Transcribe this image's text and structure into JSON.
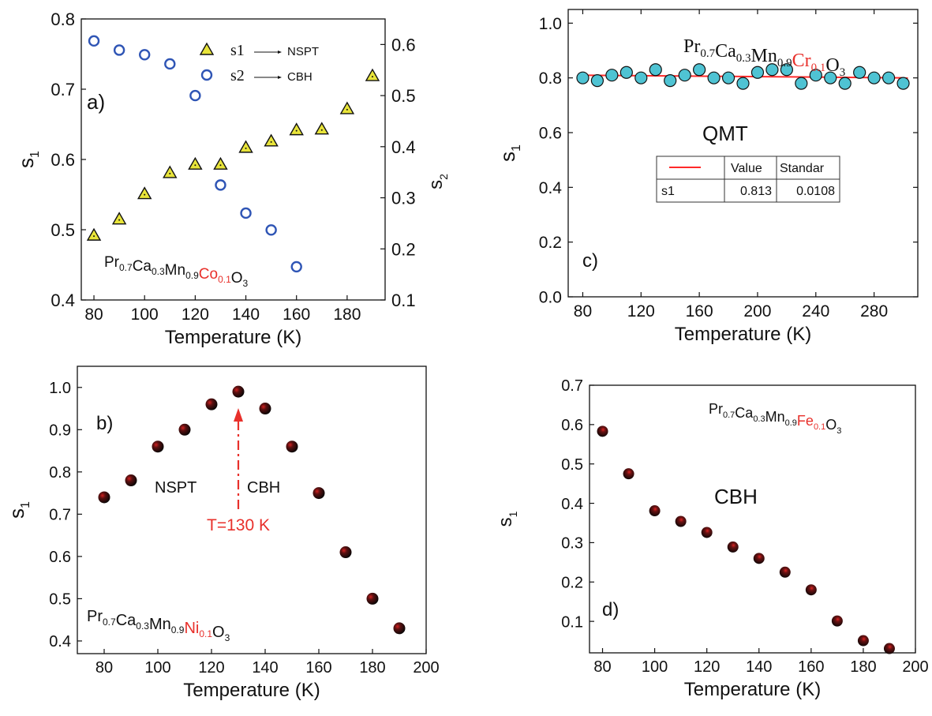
{
  "colors": {
    "axis": "#111111",
    "red": "#e8302b",
    "triangle": "#e8e43a",
    "circle_open": "#2f55b5",
    "circle_teal": "#4fc3d3",
    "sphere_highlight": "#cc2020",
    "fit_line": "#ff2a2a"
  },
  "chart_data": [
    {
      "id": "a",
      "type": "scatter",
      "panel_label": "a)",
      "xlabel": "Temperature (K)",
      "ylabel": "s1",
      "y2label": "s2",
      "xlim": [
        75,
        195
      ],
      "xticks": [
        "80",
        "100",
        "120",
        "140",
        "160",
        "180"
      ],
      "ylim": [
        0.4,
        0.8
      ],
      "yticks": [
        "0.4",
        "0.5",
        "0.6",
        "0.7",
        "0.8"
      ],
      "y2lim": [
        0.1,
        0.65
      ],
      "y2ticks": [
        "0.1",
        "0.2",
        "0.3",
        "0.4",
        "0.5",
        "0.6"
      ],
      "compound": {
        "base": "Pr0.7Ca0.3Mn0.9",
        "dopant": "Co0.1",
        "tail": "O3"
      },
      "legend": [
        {
          "symbol": "triangle",
          "label": "s1",
          "model": "NSPT"
        },
        {
          "symbol": "circle-open",
          "label": "s2",
          "model": "CBH"
        }
      ],
      "series": [
        {
          "name": "s1",
          "axis": "left",
          "marker": "triangle",
          "x": [
            80,
            90,
            100,
            110,
            120,
            130,
            140,
            150,
            160,
            170,
            180,
            190
          ],
          "y": [
            0.492,
            0.515,
            0.551,
            0.581,
            0.593,
            0.593,
            0.617,
            0.626,
            0.642,
            0.643,
            0.672,
            0.719
          ]
        },
        {
          "name": "s2",
          "axis": "right",
          "marker": "circle-open",
          "x": [
            80,
            90,
            100,
            110,
            120,
            130,
            140,
            150,
            160
          ],
          "y": [
            0.607,
            0.589,
            0.58,
            0.562,
            0.5,
            0.325,
            0.27,
            0.237,
            0.165
          ]
        }
      ]
    },
    {
      "id": "c",
      "type": "scatter",
      "panel_label": "c)",
      "xlabel": "Temperature (K)",
      "ylabel": "s1",
      "xlim": [
        70,
        310
      ],
      "xticks": [
        "80",
        "120",
        "160",
        "200",
        "240",
        "280"
      ],
      "ylim": [
        0.0,
        1.05
      ],
      "yticks": [
        "0.0",
        "0.2",
        "0.4",
        "0.6",
        "0.8",
        "1.0"
      ],
      "compound": {
        "base": "Pr0.7Ca0.3Mn0.9",
        "dopant": "Cr0.1",
        "tail": "O3"
      },
      "annotation": "QMT",
      "fit_table": {
        "header": [
          "",
          "Value",
          "Standar"
        ],
        "row": [
          "s1",
          "0.813",
          "0.0108"
        ]
      },
      "fit": {
        "y_start": 0.81,
        "y_end": 0.8
      },
      "series": [
        {
          "name": "s1",
          "marker": "circle-filled",
          "x": [
            80,
            90,
            100,
            110,
            120,
            130,
            140,
            150,
            160,
            170,
            180,
            190,
            200,
            210,
            220,
            230,
            240,
            250,
            260,
            270,
            280,
            290,
            300
          ],
          "y": [
            0.8,
            0.79,
            0.81,
            0.82,
            0.8,
            0.83,
            0.79,
            0.81,
            0.83,
            0.8,
            0.8,
            0.78,
            0.82,
            0.83,
            0.83,
            0.78,
            0.81,
            0.8,
            0.78,
            0.82,
            0.8,
            0.8,
            0.78
          ]
        }
      ]
    },
    {
      "id": "b",
      "type": "scatter",
      "panel_label": "b)",
      "xlabel": "Temperature (K)",
      "ylabel": "s1",
      "xlim": [
        70,
        200
      ],
      "xticks": [
        "80",
        "100",
        "120",
        "140",
        "160",
        "180",
        "200"
      ],
      "ylim": [
        0.37,
        1.05
      ],
      "yticks": [
        "0.4",
        "0.5",
        "0.6",
        "0.7",
        "0.8",
        "0.9",
        "1.0"
      ],
      "compound": {
        "base": "Pr0.7Ca0.3Mn0.9",
        "dopant": "Ni0.1",
        "tail": "O3"
      },
      "annotations": {
        "left": "NSPT",
        "right": "CBH",
        "arrow_label": "T=130 K"
      },
      "series": [
        {
          "name": "s1",
          "marker": "sphere",
          "x": [
            80,
            90,
            100,
            110,
            120,
            130,
            140,
            150,
            160,
            170,
            180,
            190
          ],
          "y": [
            0.74,
            0.78,
            0.86,
            0.9,
            0.96,
            0.99,
            0.95,
            0.86,
            0.75,
            0.61,
            0.5,
            0.43
          ]
        }
      ]
    },
    {
      "id": "d",
      "type": "scatter",
      "panel_label": "d)",
      "xlabel": "Temperature (K)",
      "ylabel": "s1",
      "xlim": [
        75,
        200
      ],
      "xticks": [
        "80",
        "100",
        "120",
        "140",
        "160",
        "180",
        "200"
      ],
      "ylim": [
        0.02,
        0.7
      ],
      "yticks": [
        "0.1",
        "0.2",
        "0.3",
        "0.4",
        "0.5",
        "0.6",
        "0.7"
      ],
      "compound": {
        "base": "Pr0.7Ca0.3Mn0.9",
        "dopant": "Fe0.1",
        "tail": "O3"
      },
      "annotation": "CBH",
      "series": [
        {
          "name": "s1",
          "marker": "sphere",
          "x": [
            80,
            90,
            100,
            110,
            120,
            130,
            140,
            150,
            160,
            170,
            180,
            190
          ],
          "y": [
            0.583,
            0.475,
            0.381,
            0.354,
            0.326,
            0.289,
            0.26,
            0.225,
            0.18,
            0.101,
            0.051,
            0.031
          ]
        }
      ]
    }
  ]
}
